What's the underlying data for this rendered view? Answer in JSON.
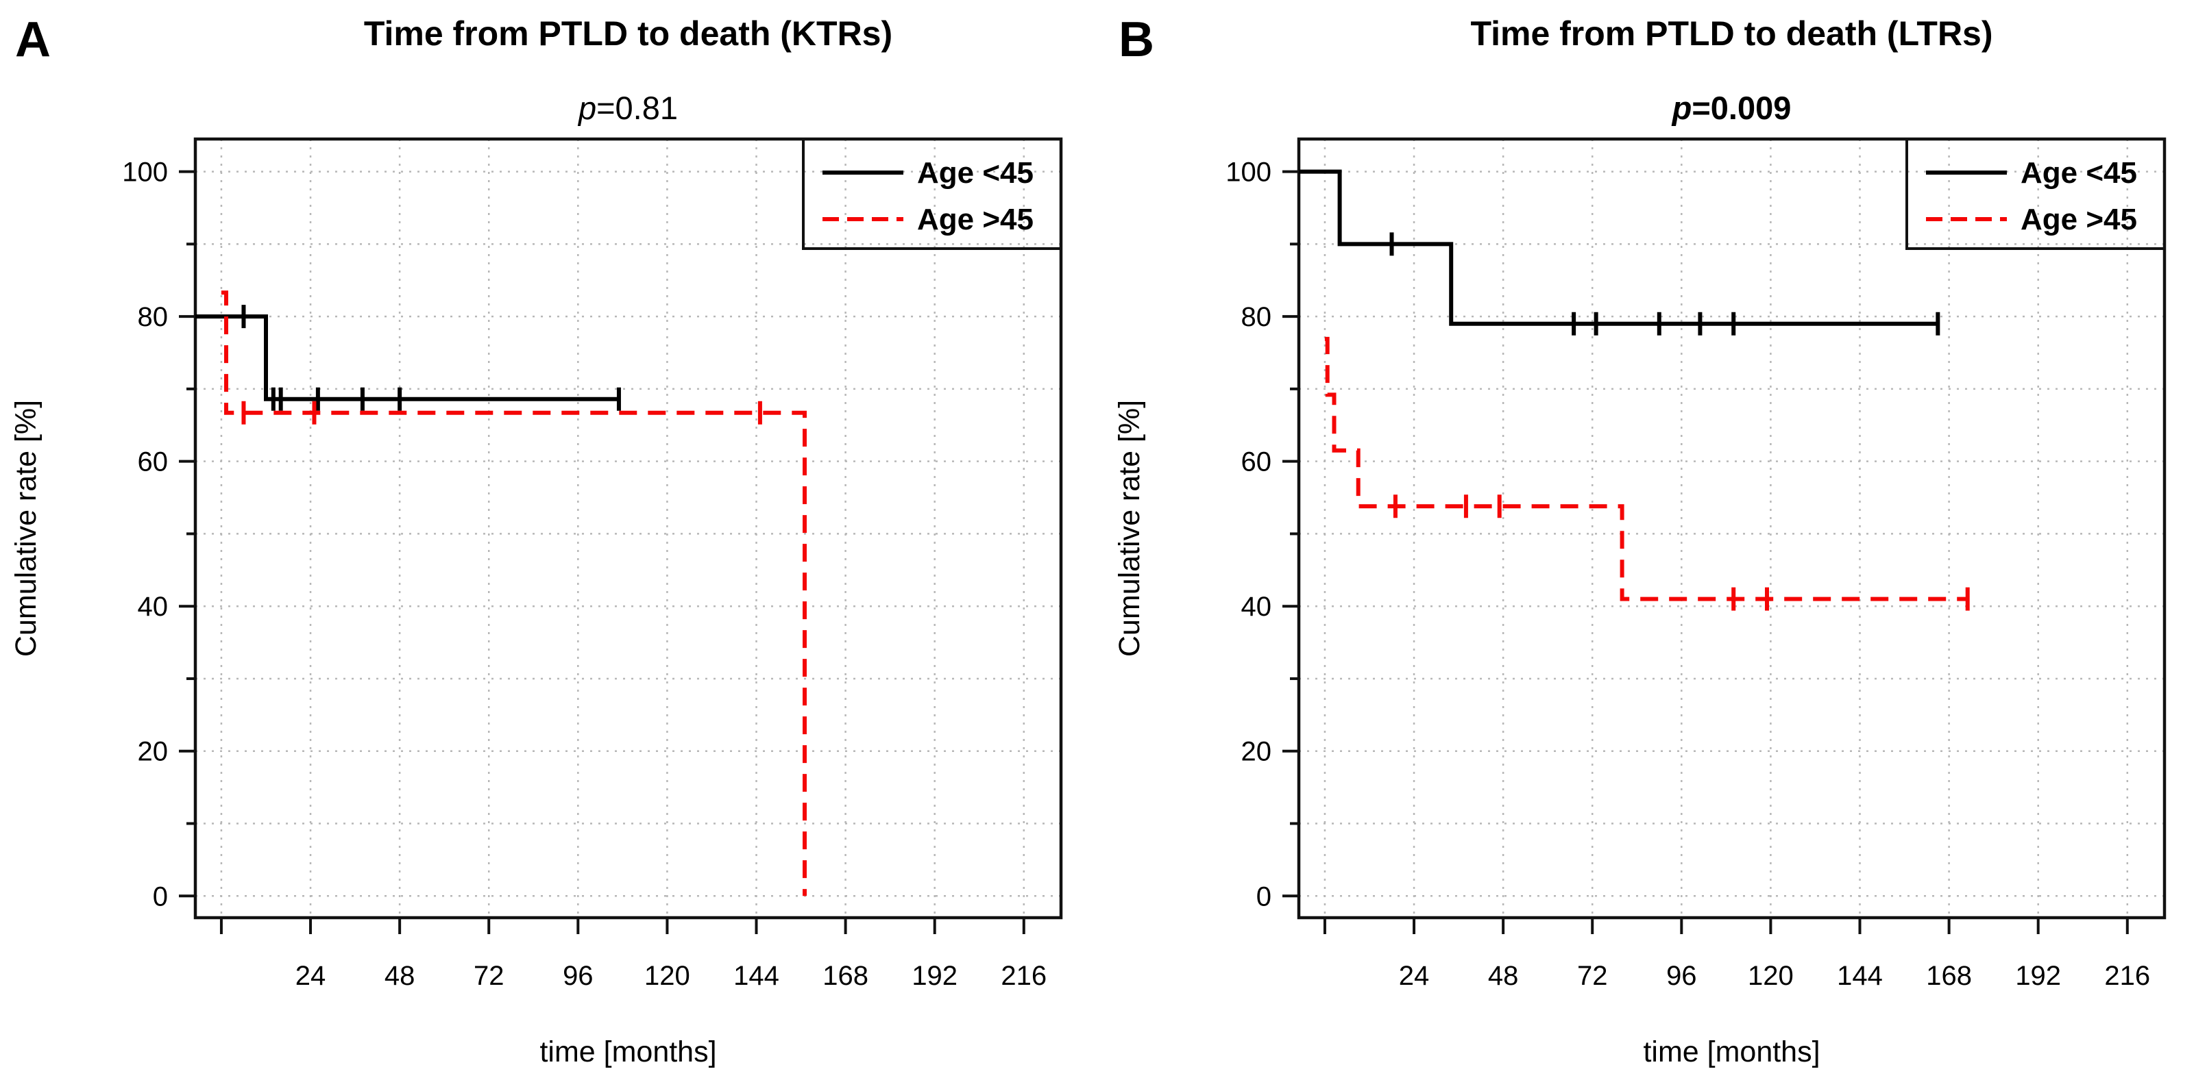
{
  "figure_type": "kaplan-meier-survival-curves",
  "background": "#ffffff",
  "colors": {
    "series_age_lt45": "#000000",
    "series_age_gt45": "#f40606",
    "grid": "#b7b7b7",
    "axis": "#111111"
  },
  "chart_data": [
    {
      "panel_label": "A",
      "type": "line",
      "subtype": "kaplan-meier-step",
      "title": "Time from PTLD to death (KTRs)",
      "p_text": "p=0.81",
      "p_italic_part": "p",
      "p_rest": "=0.81",
      "p_bold": false,
      "xlabel": "time [months]",
      "ylabel": "Cumulative rate [%]",
      "xlim": [
        -7,
        226
      ],
      "ylim": [
        -3,
        104.5
      ],
      "xticks_labeled": [
        24,
        48,
        72,
        96,
        120,
        144,
        168,
        192,
        216
      ],
      "xticks_unlabeled": [
        0
      ],
      "yticks_major": [
        0,
        20,
        40,
        60,
        80,
        100
      ],
      "yticks_minor": [
        10,
        30,
        50,
        70,
        90
      ],
      "grid": {
        "x_months": [
          0,
          24,
          48,
          72,
          96,
          120,
          144,
          168,
          192,
          216
        ],
        "y_percents": [
          0,
          10,
          20,
          30,
          40,
          50,
          60,
          70,
          80,
          90,
          100
        ],
        "style": "dotted"
      },
      "legend": {
        "position": "top-right",
        "entries": [
          {
            "label": "Age <45",
            "style": "solid",
            "color": "#000000"
          },
          {
            "label": "Age >45",
            "style": "dashed",
            "color": "#f40606"
          }
        ]
      },
      "series": [
        {
          "name": "Age <45",
          "color": "#000000",
          "line": "solid",
          "extend_to_axis": true,
          "steps_x_months_y_percent": [
            [
              0,
              80
            ],
            [
              12,
              80
            ],
            [
              12,
              68.6
            ],
            [
              107,
              68.6
            ]
          ],
          "censor_marks": [
            [
              6,
              80
            ],
            [
              14,
              68.6
            ],
            [
              16,
              68.6
            ],
            [
              26,
              68.6
            ],
            [
              38,
              68.6
            ],
            [
              48,
              68.6
            ],
            [
              107,
              68.6
            ]
          ]
        },
        {
          "name": "Age >45",
          "color": "#f40606",
          "line": "dashed",
          "extend_to_axis": false,
          "steps_x_months_y_percent": [
            [
              0,
              83.3
            ],
            [
              1.3,
              83.3
            ],
            [
              1.3,
              66.7
            ],
            [
              157,
              66.7
            ],
            [
              157,
              0
            ]
          ],
          "censor_marks": [
            [
              6,
              66.7
            ],
            [
              25,
              66.7
            ],
            [
              145,
              66.7
            ]
          ]
        }
      ]
    },
    {
      "panel_label": "B",
      "type": "line",
      "subtype": "kaplan-meier-step",
      "title": "Time from PTLD to death (LTRs)",
      "p_text": "p=0.009",
      "p_italic_part": "p",
      "p_rest": "=0.009",
      "p_bold": true,
      "xlabel": "time [months]",
      "ylabel": "Cumulative rate [%]",
      "xlim": [
        -7,
        226
      ],
      "ylim": [
        -3,
        104.5
      ],
      "xticks_labeled": [
        24,
        48,
        72,
        96,
        120,
        144,
        168,
        192,
        216
      ],
      "xticks_unlabeled": [
        0
      ],
      "yticks_major": [
        0,
        20,
        40,
        60,
        80,
        100
      ],
      "yticks_minor": [
        10,
        30,
        50,
        70,
        90
      ],
      "grid": {
        "x_months": [
          0,
          24,
          48,
          72,
          96,
          120,
          144,
          168,
          192,
          216
        ],
        "y_percents": [
          0,
          10,
          20,
          30,
          40,
          50,
          60,
          70,
          80,
          90,
          100
        ],
        "style": "dotted"
      },
      "legend": {
        "position": "top-right",
        "entries": [
          {
            "label": "Age <45",
            "style": "solid",
            "color": "#000000"
          },
          {
            "label": "Age >45",
            "style": "dashed",
            "color": "#f40606"
          }
        ]
      },
      "series": [
        {
          "name": "Age <45",
          "color": "#000000",
          "line": "solid",
          "extend_to_axis": true,
          "steps_x_months_y_percent": [
            [
              0,
              100
            ],
            [
              4,
              100
            ],
            [
              4,
              90
            ],
            [
              34,
              90
            ],
            [
              34,
              79
            ],
            [
              165,
              79
            ]
          ],
          "censor_marks": [
            [
              18,
              90
            ],
            [
              67,
              79
            ],
            [
              73,
              79
            ],
            [
              90,
              79
            ],
            [
              101,
              79
            ],
            [
              110,
              79
            ],
            [
              165,
              79
            ]
          ]
        },
        {
          "name": "Age >45",
          "color": "#f40606",
          "line": "dashed",
          "extend_to_axis": false,
          "steps_x_months_y_percent": [
            [
              0,
              76.9
            ],
            [
              0.7,
              76.9
            ],
            [
              0.7,
              69.2
            ],
            [
              2.5,
              69.2
            ],
            [
              2.5,
              61.5
            ],
            [
              9,
              61.5
            ],
            [
              9,
              53.8
            ],
            [
              80,
              53.8
            ],
            [
              80,
              41
            ],
            [
              173,
              41
            ]
          ],
          "censor_marks": [
            [
              19,
              53.8
            ],
            [
              38,
              53.8
            ],
            [
              47,
              53.8
            ],
            [
              110,
              41
            ],
            [
              119,
              41
            ],
            [
              173,
              41
            ]
          ]
        }
      ]
    }
  ]
}
